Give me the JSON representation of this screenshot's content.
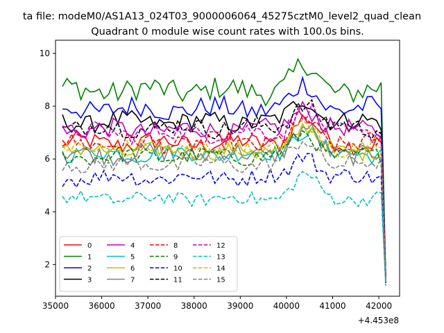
{
  "chart_data": {
    "type": "line",
    "suptitle": "ta file: modeM0/AS1A13_024T03_9000006064_45275cztM0_level2_quad_clean",
    "title": "Quadrant 0 module wise count rates with 100.0s bins.",
    "xlabel": "",
    "ylabel": "",
    "x_offset_label": "+4.453e8",
    "xlim": [
      35000,
      42450
    ],
    "ylim": [
      0.8,
      10.5
    ],
    "xticks": [
      35000,
      36000,
      37000,
      38000,
      39000,
      40000,
      41000,
      42000
    ],
    "yticks": [
      2,
      4,
      6,
      8,
      10
    ],
    "x_start": 35150,
    "x_step": 100,
    "n_points": 71,
    "legend_position": "lower-left",
    "series": [
      {
        "name": "0",
        "color": "#ff0000",
        "dash": "solid",
        "base": 6.6,
        "amp": 0.35,
        "end": 1.5
      },
      {
        "name": "1",
        "color": "#008000",
        "dash": "solid",
        "base": 8.6,
        "amp": 0.45,
        "end": 1.6
      },
      {
        "name": "2",
        "color": "#0000ff",
        "dash": "solid",
        "base": 7.9,
        "amp": 0.4,
        "end": 1.4
      },
      {
        "name": "3",
        "color": "#000000",
        "dash": "solid",
        "base": 7.4,
        "amp": 0.35,
        "end": 1.6
      },
      {
        "name": "4",
        "color": "#bf00bf",
        "dash": "solid",
        "base": 7.1,
        "amp": 0.35,
        "end": 1.5
      },
      {
        "name": "5",
        "color": "#00bfbf",
        "dash": "solid",
        "base": 6.2,
        "amp": 0.3,
        "end": 1.3
      },
      {
        "name": "6",
        "color": "#bfbf00",
        "dash": "solid",
        "base": 6.3,
        "amp": 0.3,
        "end": 1.4
      },
      {
        "name": "7",
        "color": "#808080",
        "dash": "solid",
        "base": 6.2,
        "amp": 0.35,
        "end": 1.4
      },
      {
        "name": "8",
        "color": "#ff0000",
        "dash": "dashed",
        "base": 6.6,
        "amp": 0.35,
        "end": 1.5
      },
      {
        "name": "9",
        "color": "#008000",
        "dash": "dashed",
        "base": 6.1,
        "amp": 0.3,
        "end": 1.4
      },
      {
        "name": "10",
        "color": "#0000ff",
        "dash": "dashed",
        "base": 5.3,
        "amp": 0.3,
        "end": 1.3
      },
      {
        "name": "11",
        "color": "#000000",
        "dash": "dashed",
        "base": 7.2,
        "amp": 0.35,
        "end": 1.6
      },
      {
        "name": "12",
        "color": "#bf00bf",
        "dash": "dashed",
        "base": 7.0,
        "amp": 0.35,
        "end": 1.5
      },
      {
        "name": "13",
        "color": "#00bfbf",
        "dash": "dashed",
        "base": 4.5,
        "amp": 0.25,
        "end": 1.2
      },
      {
        "name": "14",
        "color": "#bfbf00",
        "dash": "dashed",
        "base": 6.4,
        "amp": 0.3,
        "end": 1.4
      },
      {
        "name": "15",
        "color": "#808080",
        "dash": "dashed",
        "base": 5.8,
        "amp": 0.3,
        "end": 1.4
      }
    ]
  }
}
